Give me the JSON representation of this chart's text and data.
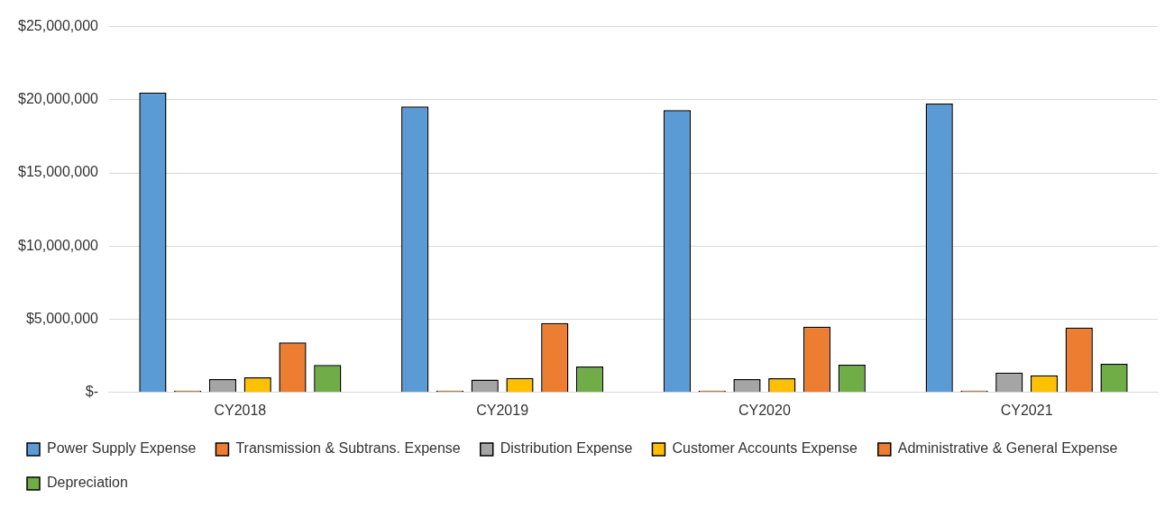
{
  "chart_data": {
    "type": "bar",
    "categories": [
      "CY2018",
      "CY2019",
      "CY2020",
      "CY2021"
    ],
    "series": [
      {
        "name": "Power Supply Expense",
        "color": "#5b9bd5",
        "values": [
          20500000,
          19550000,
          19300000,
          19750000
        ]
      },
      {
        "name": "Transmission & Subtrans. Expense",
        "color": "#ed7d31",
        "values": [
          120000,
          120000,
          120000,
          120000
        ]
      },
      {
        "name": "Distribution Expense",
        "color": "#a5a5a5",
        "values": [
          910000,
          880000,
          910000,
          1350000
        ]
      },
      {
        "name": "Customer Accounts Expense",
        "color": "#ffc000",
        "values": [
          1040000,
          990000,
          980000,
          1170000
        ]
      },
      {
        "name": "Administrative & General Expense",
        "color": "#ed7d31",
        "values": [
          3420000,
          4740000,
          4500000,
          4430000
        ]
      },
      {
        "name": "Depreciation",
        "color": "#70ad47",
        "values": [
          1880000,
          1780000,
          1900000,
          1950000
        ]
      }
    ],
    "ylim": [
      0,
      25000000
    ],
    "yticks": [
      {
        "value": 0,
        "label": "$-"
      },
      {
        "value": 5000000,
        "label": "$5,000,000"
      },
      {
        "value": 10000000,
        "label": "$10,000,000"
      },
      {
        "value": 15000000,
        "label": "$15,000,000"
      },
      {
        "value": 20000000,
        "label": "$20,000,000"
      },
      {
        "value": 25000000,
        "label": "$25,000,000"
      }
    ],
    "grid": "y",
    "legend": "bottom"
  }
}
